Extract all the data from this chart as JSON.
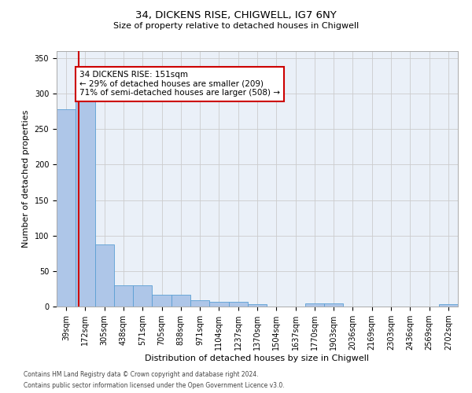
{
  "title": "34, DICKENS RISE, CHIGWELL, IG7 6NY",
  "subtitle": "Size of property relative to detached houses in Chigwell",
  "xlabel": "Distribution of detached houses by size in Chigwell",
  "ylabel": "Number of detached properties",
  "footnote1": "Contains HM Land Registry data © Crown copyright and database right 2024.",
  "footnote2": "Contains public sector information licensed under the Open Government Licence v3.0.",
  "annotation_line1": "34 DICKENS RISE: 151sqm",
  "annotation_line2": "← 29% of detached houses are smaller (209)",
  "annotation_line3": "71% of semi-detached houses are larger (508) →",
  "bin_labels": [
    "39sqm",
    "172sqm",
    "305sqm",
    "438sqm",
    "571sqm",
    "705sqm",
    "838sqm",
    "971sqm",
    "1104sqm",
    "1237sqm",
    "1370sqm",
    "1504sqm",
    "1637sqm",
    "1770sqm",
    "1903sqm",
    "2036sqm",
    "2169sqm",
    "2303sqm",
    "2436sqm",
    "2569sqm",
    "2702sqm"
  ],
  "bar_heights": [
    278,
    290,
    88,
    30,
    30,
    17,
    17,
    9,
    7,
    7,
    3,
    0,
    0,
    4,
    4,
    0,
    0,
    0,
    0,
    0,
    3
  ],
  "bar_color": "#aec6e8",
  "bar_edge_color": "#5a9fd4",
  "grid_color": "#cccccc",
  "background_color": "#eaf0f8",
  "vline_color": "#cc0000",
  "vline_x": 0.65,
  "ylim": [
    0,
    360
  ],
  "yticks": [
    0,
    50,
    100,
    150,
    200,
    250,
    300,
    350
  ],
  "title_fontsize": 9.5,
  "subtitle_fontsize": 8,
  "ylabel_fontsize": 8,
  "xlabel_fontsize": 8,
  "tick_fontsize": 7,
  "footnote_fontsize": 5.5,
  "annotation_fontsize": 7.5
}
